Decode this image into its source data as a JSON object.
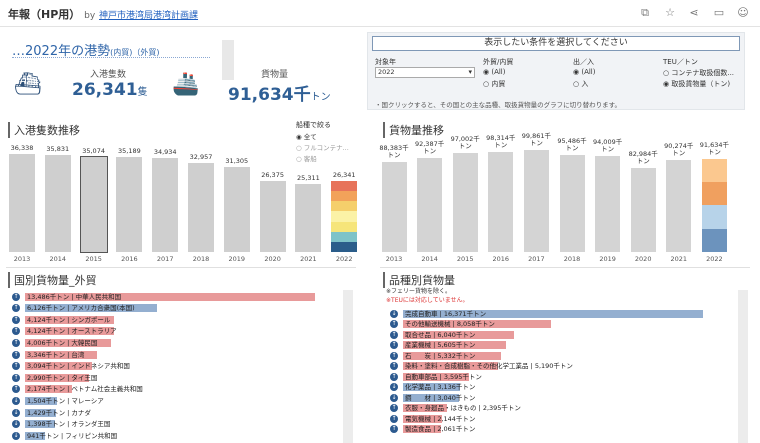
{
  "header": {
    "title": "年報（HP用）",
    "by": "by",
    "org": "神戸市港湾局港湾計画課"
  },
  "summary": {
    "heading": "2022年の港勢",
    "heading_sub": "(内貿)（外貿)",
    "arrivals_label": "入港隻数",
    "arrivals_value": "26,341",
    "arrivals_unit": "隻",
    "cargo_label": "貨物量",
    "cargo_value": "91,634千",
    "cargo_unit": "トン",
    "ship_icon": "ship-icon",
    "container_ship_icon": "container-ship-icon"
  },
  "filters": {
    "header": "表示したい条件を選択してください",
    "year_label": "対象年",
    "year_value": "2022",
    "trade_label": "外貿/内貿",
    "trade_options": [
      "(All)",
      "内貿"
    ],
    "inout_label": "出／入",
    "inout_options": [
      "(All)",
      "入"
    ],
    "teu_label": "TEU／トン",
    "teu_options": [
      "コンテナ取扱個数...",
      "取扱貨物量（トン)"
    ],
    "note": "・国クリックすると、その国との主な品種、取扱貨物量のグラフに切り替わります。"
  },
  "arrivals_chart": {
    "title": "入港隻数推移",
    "legend_title": "船種で絞る",
    "legend_options": [
      "全て",
      "フルコンテナ...",
      "客船"
    ],
    "chart_data": {
      "type": "bar",
      "categories": [
        "2013",
        "2014",
        "2015",
        "2016",
        "2017",
        "2018",
        "2019",
        "2020",
        "2021",
        "2022"
      ],
      "values": [
        36338,
        35831,
        35074,
        35189,
        34934,
        32957,
        31305,
        26375,
        25311,
        26341
      ],
      "labels": [
        "36,338",
        "35,831",
        "35,074",
        "35,189",
        "34,934",
        "32,957",
        "31,305",
        "26,375",
        "25,311",
        "26,341"
      ],
      "ylim": [
        0,
        40000
      ],
      "bar_color": "#cfcfcf",
      "stack_colors_2022": [
        "#2b5d8a",
        "#7ec3c8",
        "#f6e57a",
        "#fbf2a6",
        "#f5cf6b",
        "#f2a25a",
        "#e7735a"
      ]
    }
  },
  "cargo_chart": {
    "title": "貨物量推移",
    "chart_data": {
      "type": "bar",
      "categories": [
        "2013",
        "2014",
        "2015",
        "2016",
        "2017",
        "2018",
        "2019",
        "2020",
        "2021",
        "2022"
      ],
      "values": [
        88383,
        92387,
        97002,
        98314,
        99861,
        95486,
        94009,
        82984,
        90274,
        91634
      ],
      "labels": [
        "88,383千\nトン",
        "92,387千\nトン",
        "97,002千\nトン",
        "98,314千\nトン",
        "99,861千\nトン",
        "95,486千\nトン",
        "94,009千\nトン",
        "82,984千\nトン",
        "90,274千\nトン",
        "91,634千\nトン"
      ],
      "ylim": [
        0,
        110000
      ],
      "bar_color": "#d4d4d4",
      "stack_colors_2022": [
        "#6c93bd",
        "#b7d3e9",
        "#f0a05f",
        "#fbc88f"
      ]
    }
  },
  "country_chart": {
    "title": "国別貨物量_外貿",
    "chart_data": {
      "type": "bar",
      "items": [
        {
          "text": "13,486千トン | 中華人民共和国",
          "value": 13486,
          "dir": "up",
          "color": "#e89a9a"
        },
        {
          "text": "6,126千トン | アメリカ合衆国(本国)",
          "value": 6126,
          "dir": "up",
          "color": "#94afd0"
        },
        {
          "text": "4,124千トン | シンガポール",
          "value": 4124,
          "dir": "up",
          "color": "#e89a9a"
        },
        {
          "text": "4,124千トン | オーストラリア",
          "value": 4124,
          "dir": "up",
          "color": "#e89a9a"
        },
        {
          "text": "4,006千トン | 大韓民国",
          "value": 4006,
          "dir": "up",
          "color": "#e89a9a"
        },
        {
          "text": "3,346千トン | 台湾",
          "value": 3346,
          "dir": "up",
          "color": "#e89a9a"
        },
        {
          "text": "3,094千トン | インドネシア共和国",
          "value": 3094,
          "dir": "up",
          "color": "#e89a9a"
        },
        {
          "text": "2,990千トン | タイ王国",
          "value": 2990,
          "dir": "up",
          "color": "#e89a9a"
        },
        {
          "text": "2,174千トン | ベトナム社会主義共和国",
          "value": 2174,
          "dir": "up",
          "color": "#e89a9a"
        },
        {
          "text": "1,504千トン | マレーシア",
          "value": 1504,
          "dir": "down",
          "color": "#94afd0"
        },
        {
          "text": "1,429千トン | カナダ",
          "value": 1429,
          "dir": "down",
          "color": "#94afd0"
        },
        {
          "text": "1,398千トン | オランダ王国",
          "value": 1398,
          "dir": "down",
          "color": "#94afd0"
        },
        {
          "text": "941千トン | フィリピン共和国",
          "value": 941,
          "dir": "down",
          "color": "#94afd0"
        }
      ]
    }
  },
  "commodity_chart": {
    "title": "品種別貨物量",
    "note1": "※フェリー貨物を除く。",
    "note2": "※TEUには対応していません。",
    "chart_data": {
      "type": "bar",
      "items": [
        {
          "text": "完成自動車 | 16,371千トン",
          "value": 16371,
          "dir": "down",
          "color": "#94afd0"
        },
        {
          "text": "その他輸送機械 | 8,058千トン",
          "value": 8058,
          "dir": "up",
          "color": "#e89a9a"
        },
        {
          "text": "取合せ品 | 6,040千トン",
          "value": 6040,
          "dir": "up",
          "color": "#e89a9a"
        },
        {
          "text": "産業機械 | 5,605千トン",
          "value": 5605,
          "dir": "up",
          "color": "#e89a9a"
        },
        {
          "text": "石　　炭 | 5,332千トン",
          "value": 5332,
          "dir": "up",
          "color": "#e89a9a"
        },
        {
          "text": "染料・塗料・合成樹脂・その他化学工業品 | 5,190千トン",
          "value": 5190,
          "dir": "up",
          "color": "#e89a9a"
        },
        {
          "text": "自動車部品 | 3,595千トン",
          "value": 3595,
          "dir": "up",
          "color": "#e89a9a"
        },
        {
          "text": "化学薬品 | 3,136千トン",
          "value": 3136,
          "dir": "down",
          "color": "#94afd0"
        },
        {
          "text": "鋼　　材 | 3,040千トン",
          "value": 3040,
          "dir": "down",
          "color": "#94afd0"
        },
        {
          "text": "衣服・身廻品・はきもの | 2,395千トン",
          "value": 2395,
          "dir": "up",
          "color": "#e89a9a"
        },
        {
          "text": "電気機械 | 2,144千トン",
          "value": 2144,
          "dir": "up",
          "color": "#e89a9a"
        },
        {
          "text": "製造食品 | 2,061千トン",
          "value": 2061,
          "dir": "up",
          "color": "#e89a9a"
        }
      ]
    }
  }
}
